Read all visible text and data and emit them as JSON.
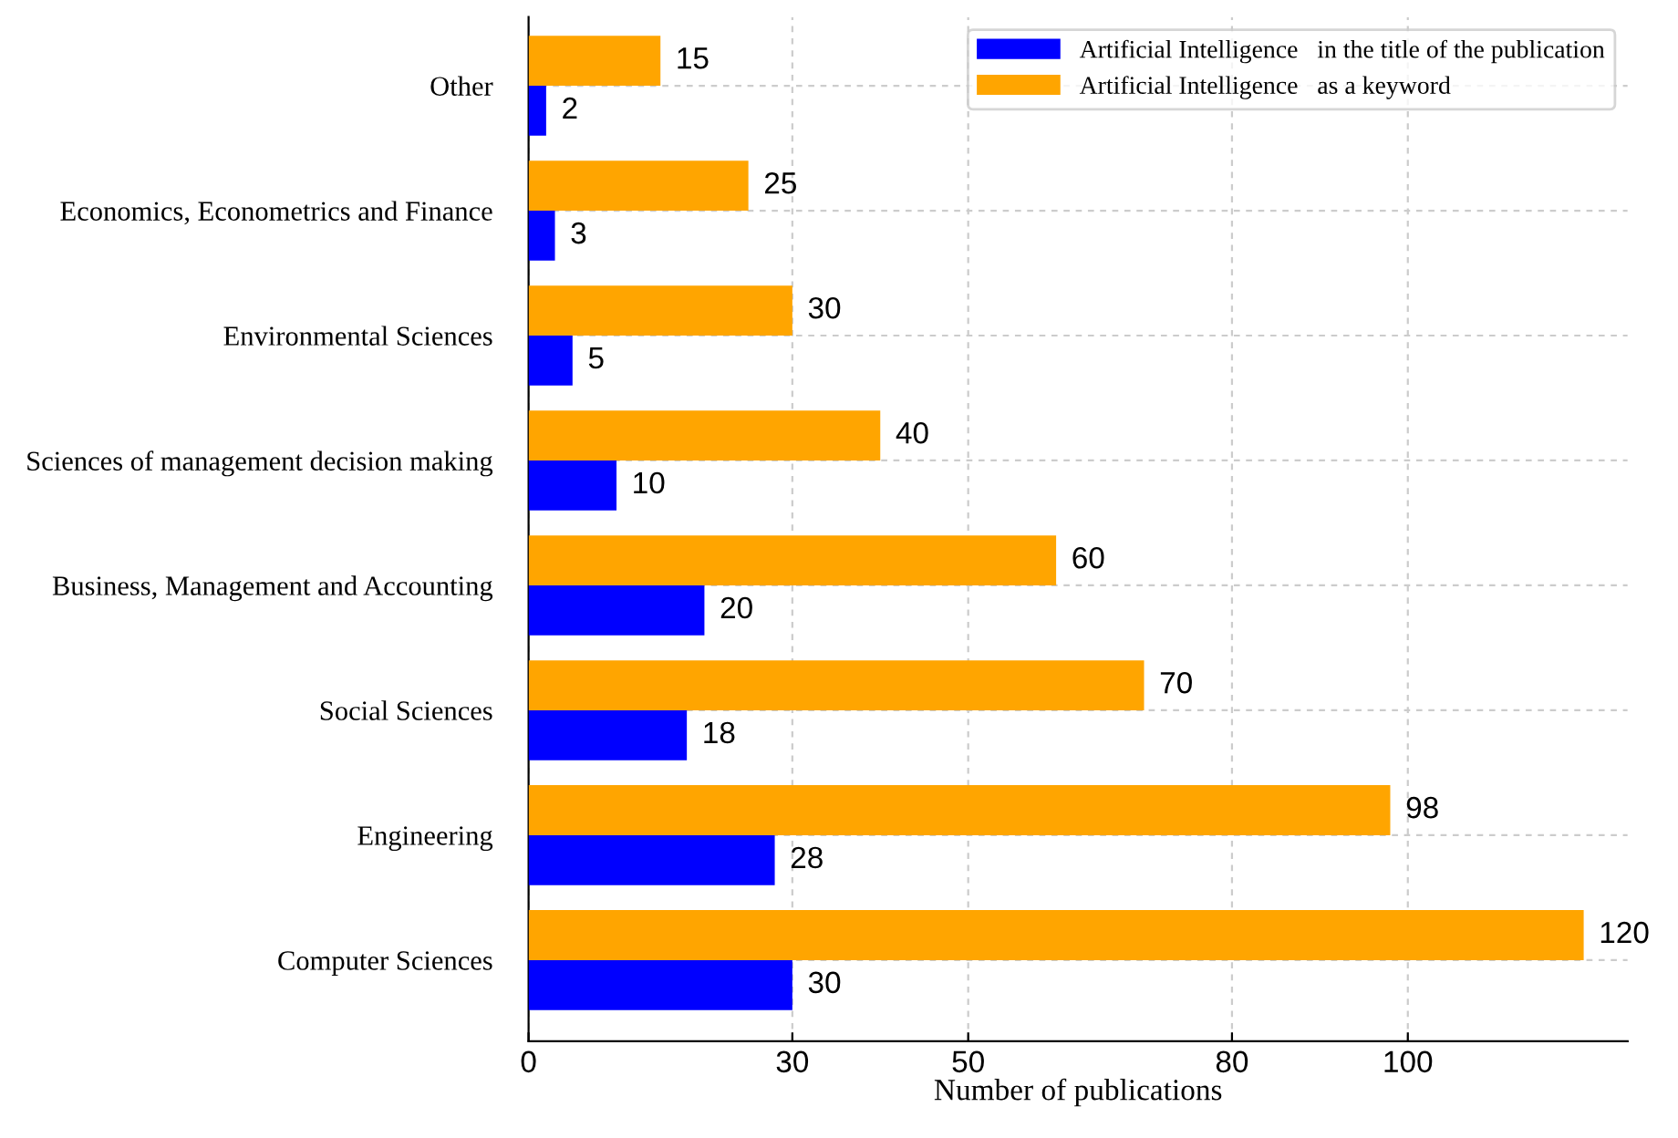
{
  "chart_data": {
    "type": "bar",
    "orientation": "horizontal",
    "xlabel": "Number of publications",
    "categories": [
      "Other",
      "Economics, Econometrics and Finance",
      "Environmental Sciences",
      "Sciences of management decision making",
      "Business, Management and Accounting",
      "Social Sciences",
      "Engineering",
      "Computer Sciences"
    ],
    "series": [
      {
        "name": "Artificial Intelligence   in the title of the publication",
        "color": "#0000ff",
        "values": [
          2,
          3,
          5,
          10,
          20,
          18,
          28,
          30
        ]
      },
      {
        "name": "Artificial Intelligence   as a keyword",
        "color": "#ffa500",
        "values": [
          15,
          25,
          30,
          40,
          60,
          70,
          98,
          120
        ]
      }
    ],
    "xlim": [
      0,
      125
    ],
    "xticks": [
      0,
      30,
      50,
      80,
      100
    ],
    "grid": true,
    "legend": "top right",
    "data_labels": true
  }
}
